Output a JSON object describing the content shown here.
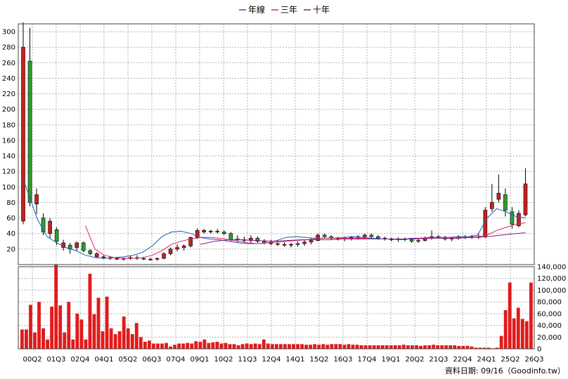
{
  "chart_data": {
    "type": "candlestick+bar",
    "legend": [
      {
        "label": "年線",
        "color": "#1a5fb4"
      },
      {
        "label": "三年",
        "color": "#e0245e"
      },
      {
        "label": "十年",
        "color": "#8b1a8b"
      }
    ],
    "x_tick_labels": [
      "00Q2",
      "01Q3",
      "02Q4",
      "04Q1",
      "05Q2",
      "06Q3",
      "07Q4",
      "09Q1",
      "10Q2",
      "11Q3",
      "12Q4",
      "14Q1",
      "15Q2",
      "16Q3",
      "17Q4",
      "19Q1",
      "20Q2",
      "21Q3",
      "22Q4",
      "24Q1",
      "25Q2",
      "26Q3"
    ],
    "price_axis": {
      "ticks": [
        20,
        40,
        60,
        80,
        100,
        120,
        140,
        160,
        180,
        200,
        220,
        240,
        260,
        280,
        300
      ],
      "ylim": [
        0,
        310
      ],
      "grid": true
    },
    "volume_axis": {
      "ticks": [
        "0",
        "20,000",
        "40,000",
        "60,000",
        "80,000",
        "100,000",
        "120,000",
        "140,000"
      ],
      "tick_values": [
        0,
        20000,
        40000,
        60000,
        80000,
        100000,
        120000,
        140000
      ],
      "ylim": [
        0,
        140000
      ]
    },
    "candles": [
      {
        "o": 56,
        "h": 312,
        "l": 52,
        "c": 280,
        "up": false
      },
      {
        "o": 80,
        "h": 305,
        "l": 75,
        "c": 262,
        "up": true
      },
      {
        "o": 90,
        "h": 98,
        "l": 65,
        "c": 78,
        "up": false
      },
      {
        "o": 60,
        "h": 66,
        "l": 38,
        "c": 42,
        "up": true
      },
      {
        "o": 56,
        "h": 60,
        "l": 34,
        "c": 40,
        "up": false
      },
      {
        "o": 45,
        "h": 48,
        "l": 25,
        "c": 30,
        "up": true
      },
      {
        "o": 28,
        "h": 32,
        "l": 18,
        "c": 22,
        "up": false
      },
      {
        "o": 20,
        "h": 28,
        "l": 14,
        "c": 25,
        "up": true
      },
      {
        "o": 22,
        "h": 30,
        "l": 18,
        "c": 28,
        "up": false
      },
      {
        "o": 28,
        "h": 30,
        "l": 16,
        "c": 18,
        "up": true
      },
      {
        "o": 18,
        "h": 20,
        "l": 12,
        "c": 14,
        "up": true
      },
      {
        "o": 14,
        "h": 16,
        "l": 9,
        "c": 10,
        "up": false
      },
      {
        "o": 10,
        "h": 12,
        "l": 7,
        "c": 9,
        "up": false
      },
      {
        "o": 9,
        "h": 11,
        "l": 6,
        "c": 8,
        "up": false
      },
      {
        "o": 8,
        "h": 10,
        "l": 6,
        "c": 7,
        "up": false
      },
      {
        "o": 7,
        "h": 9,
        "l": 5,
        "c": 8,
        "up": false
      },
      {
        "o": 8,
        "h": 11,
        "l": 6,
        "c": 9,
        "up": false
      },
      {
        "o": 9,
        "h": 12,
        "l": 6,
        "c": 8,
        "up": true
      },
      {
        "o": 8,
        "h": 10,
        "l": 6,
        "c": 7,
        "up": true
      },
      {
        "o": 7,
        "h": 9,
        "l": 5,
        "c": 7,
        "up": false
      },
      {
        "o": 7,
        "h": 9,
        "l": 5,
        "c": 8,
        "up": false
      },
      {
        "o": 8,
        "h": 16,
        "l": 7,
        "c": 14,
        "up": false
      },
      {
        "o": 14,
        "h": 22,
        "l": 12,
        "c": 20,
        "up": false
      },
      {
        "o": 20,
        "h": 26,
        "l": 17,
        "c": 22,
        "up": false
      },
      {
        "o": 22,
        "h": 26,
        "l": 18,
        "c": 24,
        "up": false
      },
      {
        "o": 24,
        "h": 36,
        "l": 22,
        "c": 35,
        "up": false
      },
      {
        "o": 35,
        "h": 47,
        "l": 33,
        "c": 44,
        "up": false
      },
      {
        "o": 44,
        "h": 46,
        "l": 40,
        "c": 42,
        "up": false
      },
      {
        "o": 42,
        "h": 45,
        "l": 40,
        "c": 43,
        "up": true
      },
      {
        "o": 43,
        "h": 46,
        "l": 40,
        "c": 42,
        "up": true
      },
      {
        "o": 42,
        "h": 44,
        "l": 38,
        "c": 40,
        "up": true
      },
      {
        "o": 40,
        "h": 42,
        "l": 30,
        "c": 32,
        "up": true
      },
      {
        "o": 33,
        "h": 38,
        "l": 28,
        "c": 32,
        "up": true
      },
      {
        "o": 32,
        "h": 36,
        "l": 28,
        "c": 31,
        "up": true
      },
      {
        "o": 31,
        "h": 38,
        "l": 27,
        "c": 34,
        "up": false
      },
      {
        "o": 34,
        "h": 36,
        "l": 28,
        "c": 30,
        "up": true
      },
      {
        "o": 30,
        "h": 33,
        "l": 26,
        "c": 28,
        "up": true
      },
      {
        "o": 28,
        "h": 32,
        "l": 25,
        "c": 27,
        "up": false
      },
      {
        "o": 27,
        "h": 30,
        "l": 24,
        "c": 26,
        "up": false
      },
      {
        "o": 26,
        "h": 29,
        "l": 23,
        "c": 25,
        "up": false
      },
      {
        "o": 25,
        "h": 28,
        "l": 22,
        "c": 26,
        "up": false
      },
      {
        "o": 26,
        "h": 30,
        "l": 23,
        "c": 27,
        "up": false
      },
      {
        "o": 27,
        "h": 32,
        "l": 24,
        "c": 29,
        "up": false
      },
      {
        "o": 29,
        "h": 34,
        "l": 26,
        "c": 31,
        "up": false
      },
      {
        "o": 31,
        "h": 40,
        "l": 30,
        "c": 38,
        "up": false
      },
      {
        "o": 38,
        "h": 40,
        "l": 34,
        "c": 36,
        "up": true
      },
      {
        "o": 36,
        "h": 38,
        "l": 32,
        "c": 34,
        "up": true
      },
      {
        "o": 34,
        "h": 36,
        "l": 31,
        "c": 33,
        "up": true
      },
      {
        "o": 33,
        "h": 36,
        "l": 30,
        "c": 34,
        "up": false
      },
      {
        "o": 34,
        "h": 37,
        "l": 31,
        "c": 35,
        "up": false
      },
      {
        "o": 35,
        "h": 38,
        "l": 32,
        "c": 36,
        "up": false
      },
      {
        "o": 36,
        "h": 40,
        "l": 33,
        "c": 38,
        "up": false
      },
      {
        "o": 38,
        "h": 40,
        "l": 34,
        "c": 36,
        "up": true
      },
      {
        "o": 36,
        "h": 38,
        "l": 32,
        "c": 34,
        "up": true
      },
      {
        "o": 34,
        "h": 36,
        "l": 31,
        "c": 33,
        "up": true
      },
      {
        "o": 33,
        "h": 35,
        "l": 30,
        "c": 32,
        "up": false
      },
      {
        "o": 32,
        "h": 35,
        "l": 29,
        "c": 33,
        "up": false
      },
      {
        "o": 33,
        "h": 35,
        "l": 30,
        "c": 32,
        "up": true
      },
      {
        "o": 32,
        "h": 34,
        "l": 28,
        "c": 30,
        "up": true
      },
      {
        "o": 30,
        "h": 33,
        "l": 28,
        "c": 31,
        "up": false
      },
      {
        "o": 31,
        "h": 36,
        "l": 30,
        "c": 34,
        "up": false
      },
      {
        "o": 34,
        "h": 44,
        "l": 32,
        "c": 36,
        "up": false
      },
      {
        "o": 36,
        "h": 38,
        "l": 33,
        "c": 35,
        "up": true
      },
      {
        "o": 35,
        "h": 37,
        "l": 31,
        "c": 33,
        "up": true
      },
      {
        "o": 33,
        "h": 36,
        "l": 30,
        "c": 34,
        "up": false
      },
      {
        "o": 34,
        "h": 38,
        "l": 32,
        "c": 36,
        "up": false
      },
      {
        "o": 36,
        "h": 38,
        "l": 33,
        "c": 35,
        "up": true
      },
      {
        "o": 35,
        "h": 38,
        "l": 33,
        "c": 36,
        "up": false
      },
      {
        "o": 36,
        "h": 40,
        "l": 33,
        "c": 35,
        "up": true
      },
      {
        "o": 36,
        "h": 74,
        "l": 34,
        "c": 70,
        "up": false
      },
      {
        "o": 72,
        "h": 104,
        "l": 68,
        "c": 80,
        "up": false
      },
      {
        "o": 84,
        "h": 116,
        "l": 80,
        "c": 92,
        "up": false
      },
      {
        "o": 90,
        "h": 98,
        "l": 62,
        "c": 70,
        "up": true
      },
      {
        "o": 68,
        "h": 74,
        "l": 46,
        "c": 52,
        "up": true
      },
      {
        "o": 50,
        "h": 70,
        "l": 48,
        "c": 66,
        "up": false
      },
      {
        "o": 64,
        "h": 124,
        "l": 62,
        "c": 104,
        "up": false
      }
    ],
    "volumes": [
      33000,
      33000,
      75000,
      28000,
      80000,
      35000,
      16000,
      72000,
      144000,
      74000,
      28000,
      80000,
      16000,
      60000,
      50000,
      16000,
      128000,
      59000,
      87000,
      30000,
      89000,
      35000,
      25000,
      30000,
      55000,
      35000,
      25000,
      44000,
      20000,
      12000,
      14000,
      9000,
      9000,
      9000,
      10000,
      4000,
      7000,
      9000,
      9000,
      10000,
      9000,
      13000,
      12000,
      16000,
      10000,
      11000,
      12000,
      9000,
      10000,
      8000,
      8000,
      6000,
      8000,
      9000,
      8000,
      9000,
      8000,
      16000,
      9000,
      8000,
      8000,
      8000,
      8000,
      8000,
      8000,
      8000,
      8000,
      7000,
      7000,
      8000,
      7000,
      8000,
      7000,
      8000,
      8000,
      8000,
      7000,
      8000,
      7000,
      7000,
      6000,
      6000,
      6000,
      6000,
      6000,
      6000,
      6000,
      6000,
      6000,
      6000,
      7000,
      6000,
      6000,
      6000,
      5000,
      6000,
      6000,
      7000,
      6000,
      6000,
      6000,
      6000,
      6000,
      5000,
      5000,
      5000,
      4000,
      2000,
      2000,
      2000,
      2000,
      1000,
      2000,
      22000,
      66000,
      113000,
      52000,
      70000,
      51000,
      47000,
      113000
    ],
    "annual_line": [
      [
        0,
        110
      ],
      [
        0.06,
        58
      ],
      [
        0.1,
        36
      ],
      [
        0.14,
        28
      ],
      [
        0.18,
        22
      ],
      [
        0.22,
        18
      ],
      [
        0.26,
        12
      ],
      [
        0.3,
        9
      ],
      [
        0.34,
        8
      ],
      [
        0.38,
        9
      ],
      [
        0.42,
        10
      ],
      [
        0.46,
        12
      ],
      [
        0.5,
        16
      ],
      [
        0.54,
        24
      ],
      [
        0.58,
        36
      ],
      [
        0.62,
        42
      ],
      [
        0.66,
        43
      ],
      [
        0.7,
        40
      ],
      [
        0.74,
        35
      ],
      [
        0.78,
        33
      ],
      [
        0.82,
        32
      ],
      [
        0.86,
        30
      ],
      [
        0.9,
        28
      ],
      [
        0.94,
        27
      ],
      [
        0.98,
        27
      ],
      [
        1.02,
        28
      ],
      [
        1.06,
        31
      ],
      [
        1.1,
        35
      ],
      [
        1.14,
        36
      ],
      [
        1.18,
        35
      ],
      [
        1.22,
        34
      ],
      [
        1.26,
        34
      ],
      [
        1.3,
        34
      ],
      [
        1.34,
        35
      ],
      [
        1.38,
        36
      ],
      [
        1.42,
        35
      ],
      [
        1.46,
        34
      ],
      [
        1.5,
        33
      ],
      [
        1.54,
        33
      ],
      [
        1.58,
        32
      ],
      [
        1.62,
        34
      ],
      [
        1.66,
        34
      ],
      [
        1.7,
        35
      ],
      [
        1.74,
        35
      ],
      [
        1.78,
        35
      ],
      [
        1.82,
        36
      ],
      [
        1.86,
        36
      ],
      [
        1.9,
        38
      ],
      [
        1.94,
        60
      ],
      [
        1.98,
        72
      ],
      [
        2.02,
        68
      ],
      [
        2.06,
        62
      ],
      [
        2.1,
        60
      ]
    ],
    "three_year_line": [
      [
        0.26,
        50
      ],
      [
        0.3,
        20
      ],
      [
        0.34,
        12
      ],
      [
        0.38,
        9
      ],
      [
        0.42,
        8
      ],
      [
        0.46,
        8
      ],
      [
        0.5,
        9
      ],
      [
        0.54,
        12
      ],
      [
        0.58,
        18
      ],
      [
        0.62,
        26
      ],
      [
        0.66,
        30
      ],
      [
        0.7,
        33
      ],
      [
        0.74,
        35
      ],
      [
        0.78,
        35
      ],
      [
        0.82,
        34
      ],
      [
        0.86,
        32
      ],
      [
        0.9,
        30
      ],
      [
        0.94,
        28
      ],
      [
        0.98,
        27
      ],
      [
        1.02,
        28
      ],
      [
        1.06,
        29
      ],
      [
        1.1,
        30
      ],
      [
        1.14,
        31
      ],
      [
        1.18,
        32
      ],
      [
        1.22,
        33
      ],
      [
        1.26,
        34
      ],
      [
        1.3,
        34
      ],
      [
        1.34,
        34
      ],
      [
        1.38,
        34
      ],
      [
        1.42,
        34
      ],
      [
        1.46,
        33
      ],
      [
        1.5,
        33
      ],
      [
        1.54,
        33
      ],
      [
        1.58,
        33
      ],
      [
        1.62,
        33
      ],
      [
        1.66,
        34
      ],
      [
        1.7,
        34
      ],
      [
        1.74,
        35
      ],
      [
        1.78,
        35
      ],
      [
        1.82,
        35
      ],
      [
        1.86,
        35
      ],
      [
        1.9,
        36
      ],
      [
        1.94,
        38
      ],
      [
        1.98,
        44
      ],
      [
        2.02,
        48
      ],
      [
        2.06,
        52
      ],
      [
        2.1,
        54
      ]
    ],
    "ten_year_line": [
      [
        0.74,
        26
      ],
      [
        0.8,
        30
      ],
      [
        0.86,
        32
      ],
      [
        0.92,
        32
      ],
      [
        0.98,
        31
      ],
      [
        1.04,
        30
      ],
      [
        1.1,
        31
      ],
      [
        1.16,
        32
      ],
      [
        1.22,
        32
      ],
      [
        1.28,
        32
      ],
      [
        1.34,
        33
      ],
      [
        1.4,
        33
      ],
      [
        1.46,
        33
      ],
      [
        1.52,
        33
      ],
      [
        1.58,
        33
      ],
      [
        1.64,
        33
      ],
      [
        1.7,
        34
      ],
      [
        1.76,
        34
      ],
      [
        1.82,
        34
      ],
      [
        1.88,
        35
      ],
      [
        1.94,
        36
      ],
      [
        2.0,
        38
      ],
      [
        2.06,
        40
      ],
      [
        2.1,
        41
      ]
    ],
    "credit": "資料日期: 09/16（Goodinfo.tw）"
  }
}
